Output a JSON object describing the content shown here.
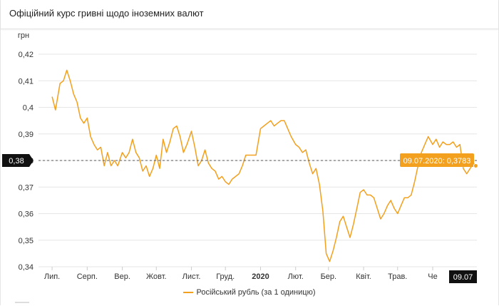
{
  "header": {
    "title": "Офіційний курс гривні щодо іноземних валют"
  },
  "chart_data": {
    "type": "line",
    "ylabel": "грн",
    "ylim": [
      0.34,
      0.42
    ],
    "yticks": [
      "0,34",
      "0,35",
      "0,36",
      "0,37",
      "0,38",
      "0,39",
      "0,4",
      "0,41",
      "0,42"
    ],
    "ytick_values": [
      0.34,
      0.35,
      0.36,
      0.37,
      0.38,
      0.39,
      0.4,
      0.41,
      0.42
    ],
    "xticks": [
      "Лип.",
      "Серп.",
      "Вер.",
      "Жовт.",
      "Лист.",
      "Груд.",
      "2020",
      "Лют.",
      "Бер.",
      "Квіт.",
      "Трав.",
      "Че"
    ],
    "xtick_bold": [
      false,
      false,
      false,
      false,
      false,
      false,
      true,
      false,
      false,
      false,
      false,
      false
    ],
    "x": [
      "2019-07-01",
      "2019-07-04",
      "2019-07-08",
      "2019-07-11",
      "2019-07-14",
      "2019-07-17",
      "2019-07-20",
      "2019-07-23",
      "2019-07-26",
      "2019-07-29",
      "2019-08-01",
      "2019-08-04",
      "2019-08-07",
      "2019-08-10",
      "2019-08-13",
      "2019-08-16",
      "2019-08-19",
      "2019-08-22",
      "2019-08-25",
      "2019-08-28",
      "2019-09-01",
      "2019-09-04",
      "2019-09-07",
      "2019-09-10",
      "2019-09-13",
      "2019-09-16",
      "2019-09-19",
      "2019-09-22",
      "2019-09-25",
      "2019-09-28",
      "2019-10-01",
      "2019-10-04",
      "2019-10-07",
      "2019-10-10",
      "2019-10-13",
      "2019-10-16",
      "2019-10-19",
      "2019-10-22",
      "2019-10-25",
      "2019-10-28",
      "2019-11-01",
      "2019-11-04",
      "2019-11-07",
      "2019-11-10",
      "2019-11-13",
      "2019-11-16",
      "2019-11-19",
      "2019-11-22",
      "2019-11-25",
      "2019-11-28",
      "2019-12-01",
      "2019-12-04",
      "2019-12-07",
      "2019-12-10",
      "2019-12-13",
      "2019-12-16",
      "2019-12-19",
      "2019-12-22",
      "2019-12-25",
      "2019-12-28",
      "2020-01-01",
      "2020-01-04",
      "2020-01-07",
      "2020-01-10",
      "2020-01-13",
      "2020-01-16",
      "2020-01-19",
      "2020-01-22",
      "2020-01-25",
      "2020-01-28",
      "2020-02-01",
      "2020-02-04",
      "2020-02-07",
      "2020-02-10",
      "2020-02-13",
      "2020-02-16",
      "2020-02-19",
      "2020-02-22",
      "2020-02-25",
      "2020-02-28",
      "2020-03-02",
      "2020-03-05",
      "2020-03-08",
      "2020-03-11",
      "2020-03-14",
      "2020-03-17",
      "2020-03-20",
      "2020-03-23",
      "2020-03-26",
      "2020-03-29",
      "2020-04-01",
      "2020-04-04",
      "2020-04-07",
      "2020-04-10",
      "2020-04-13",
      "2020-04-16",
      "2020-04-19",
      "2020-04-22",
      "2020-04-25",
      "2020-04-28",
      "2020-05-01",
      "2020-05-04",
      "2020-05-07",
      "2020-05-10",
      "2020-05-13",
      "2020-05-16",
      "2020-05-19",
      "2020-05-22",
      "2020-05-25",
      "2020-05-28",
      "2020-06-01",
      "2020-06-04",
      "2020-06-07",
      "2020-06-10",
      "2020-06-13",
      "2020-06-16",
      "2020-06-19",
      "2020-06-22",
      "2020-06-25",
      "2020-06-28",
      "2020-07-01",
      "2020-07-04",
      "2020-07-07",
      "2020-07-09"
    ],
    "series": [
      {
        "name": "Російський рубль (за 1 одиницю)",
        "color": "#f2a01e",
        "values": [
          0.404,
          0.399,
          0.409,
          0.41,
          0.414,
          0.41,
          0.405,
          0.402,
          0.396,
          0.394,
          0.396,
          0.389,
          0.386,
          0.384,
          0.385,
          0.378,
          0.383,
          0.378,
          0.38,
          0.378,
          0.383,
          0.381,
          0.383,
          0.388,
          0.383,
          0.381,
          0.376,
          0.378,
          0.374,
          0.377,
          0.382,
          0.377,
          0.388,
          0.383,
          0.387,
          0.392,
          0.393,
          0.389,
          0.383,
          0.386,
          0.391,
          0.385,
          0.378,
          0.38,
          0.384,
          0.379,
          0.377,
          0.376,
          0.373,
          0.374,
          0.372,
          0.371,
          0.373,
          0.374,
          0.375,
          0.378,
          0.382,
          0.382,
          0.382,
          0.382,
          0.392,
          0.393,
          0.394,
          0.395,
          0.393,
          0.394,
          0.395,
          0.395,
          0.392,
          0.389,
          0.386,
          0.385,
          0.383,
          0.384,
          0.379,
          0.375,
          0.377,
          0.371,
          0.361,
          0.345,
          0.342,
          0.346,
          0.351,
          0.357,
          0.359,
          0.355,
          0.351,
          0.356,
          0.362,
          0.368,
          0.369,
          0.367,
          0.367,
          0.366,
          0.362,
          0.358,
          0.36,
          0.363,
          0.365,
          0.362,
          0.36,
          0.363,
          0.366,
          0.366,
          0.367,
          0.372,
          0.378,
          0.383,
          0.386,
          0.389,
          0.386,
          0.388,
          0.385,
          0.387,
          0.386,
          0.386,
          0.387,
          0.385,
          0.386,
          0.377,
          0.375,
          0.377,
          0.379,
          0.378
        ]
      }
    ],
    "highlight": {
      "value": 0.38,
      "label": "0,38",
      "x_label": "09.07",
      "tooltip": "09.07.2020: 0,3783"
    },
    "grid": true,
    "legend_position": "bottom-center"
  }
}
